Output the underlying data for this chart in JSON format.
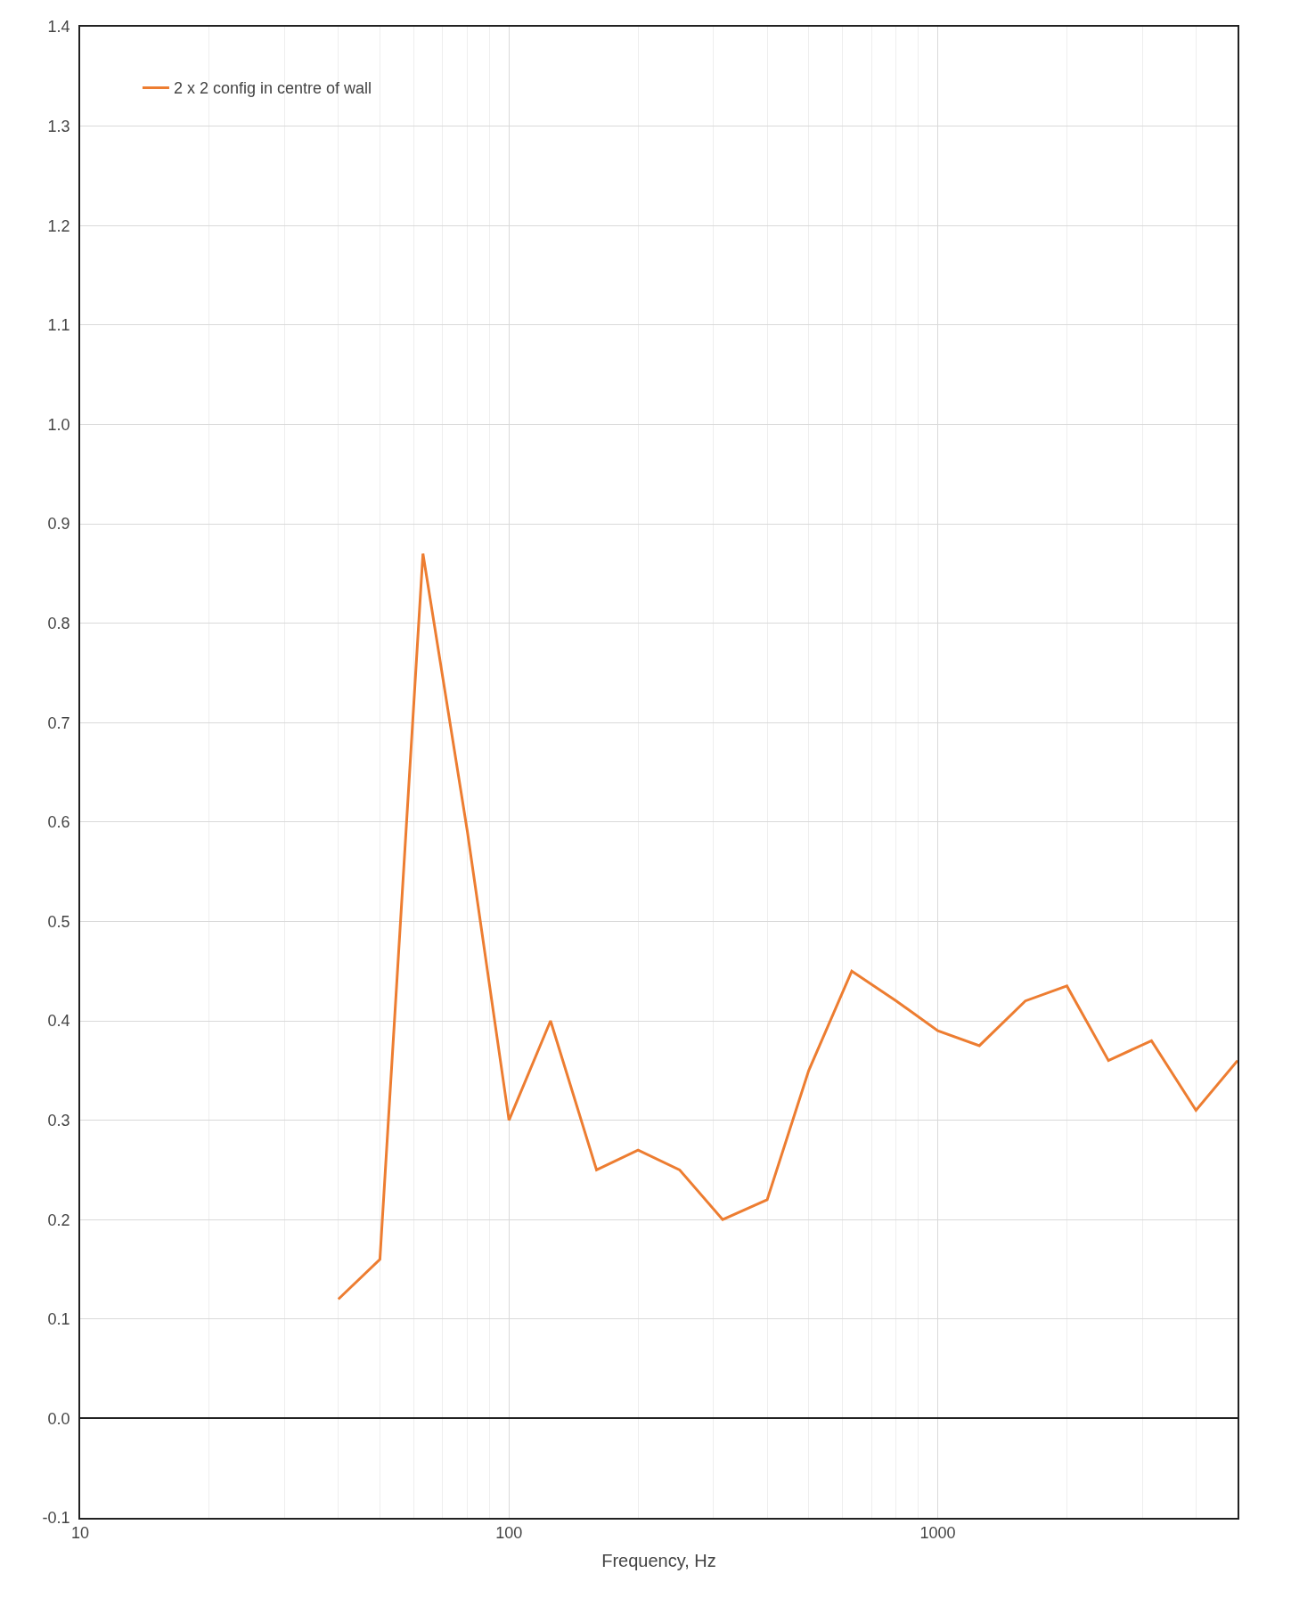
{
  "chart_data": {
    "type": "line",
    "xlabel": "Frequency, Hz",
    "log": "x",
    "x": [
      40,
      50,
      63,
      80,
      100,
      125,
      160,
      200,
      250,
      315,
      400,
      500,
      630,
      800,
      1000,
      1250,
      1600,
      2000,
      2500,
      3150,
      4000,
      5000
    ],
    "series": [
      {
        "name": "2 x 2 config in centre of wall",
        "color": "#ed7d31",
        "values": [
          0.12,
          0.16,
          0.87,
          0.59,
          0.3,
          0.4,
          0.25,
          0.27,
          0.25,
          0.2,
          0.22,
          0.35,
          0.45,
          0.42,
          0.39,
          0.375,
          0.42,
          0.435,
          0.36,
          0.38,
          0.31,
          0.36
        ]
      }
    ],
    "xlim": [
      10,
      5000
    ],
    "xticks": [
      10,
      100,
      1000
    ],
    "ylim": [
      -0.1,
      1.4
    ],
    "yticks": [
      -0.1,
      {
        "value": 0,
        "label": "0.0"
      },
      0.1,
      0.2,
      0.3,
      0.4,
      0.5,
      0.6,
      0.7,
      0.8,
      0.9,
      {
        "value": 1,
        "label": "1.0"
      },
      1.1,
      1.2,
      1.3,
      1.4
    ],
    "grid": true,
    "legend": "top left",
    "marker": "none",
    "line_style": "solid"
  }
}
